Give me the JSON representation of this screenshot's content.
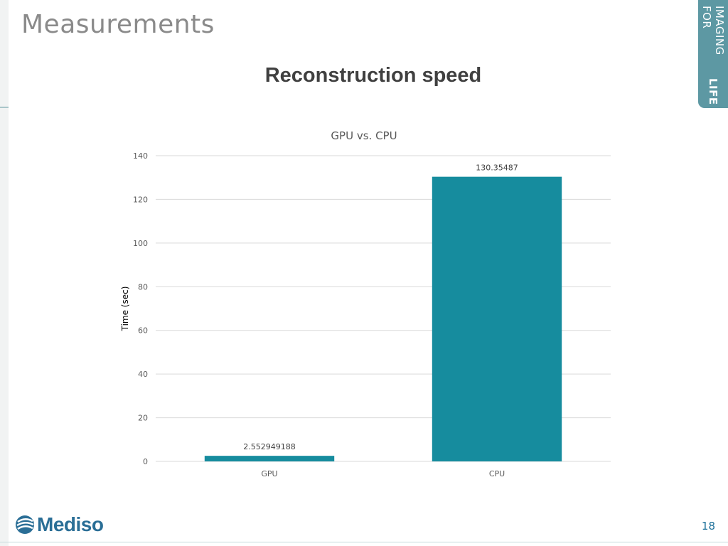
{
  "slide": {
    "title": "Measurements",
    "subtitle": "Reconstruction speed",
    "tagline_light": "IMAGING FOR ",
    "tagline_bold": "LIFE",
    "logo_text": "Mediso",
    "page_number": "18"
  },
  "colors": {
    "bar": "#168c9e",
    "grid": "#d9d9d9",
    "accent": "#5d98a3"
  },
  "chart_data": {
    "type": "bar",
    "title": "GPU vs. CPU",
    "xlabel": "",
    "ylabel": "Time (sec)",
    "categories": [
      "GPU",
      "CPU"
    ],
    "values": [
      2.552949188,
      130.35487
    ],
    "value_labels": [
      "2.552949188",
      "130.35487"
    ],
    "ylim": [
      0,
      140
    ],
    "yticks": [
      0,
      20,
      40,
      60,
      80,
      100,
      120,
      140
    ],
    "grid": true,
    "legend": "none"
  }
}
